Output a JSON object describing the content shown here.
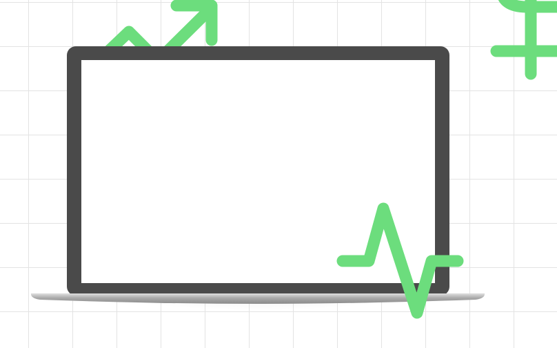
{
  "colors": {
    "background": "#ffffff",
    "grid_line": "#e3e3e3",
    "accent_green": "#6cdd7d",
    "laptop_frame": "#4a4a4a",
    "laptop_screen": "#ffffff",
    "laptop_base": "#a9a9a9",
    "laptop_base_highlight": "#d6d6d6"
  },
  "icons": {
    "trend": "trend-up-arrow-icon",
    "currency": "dollar-sign-icon",
    "pulse": "pulse-line-icon",
    "device": "laptop-icon"
  }
}
